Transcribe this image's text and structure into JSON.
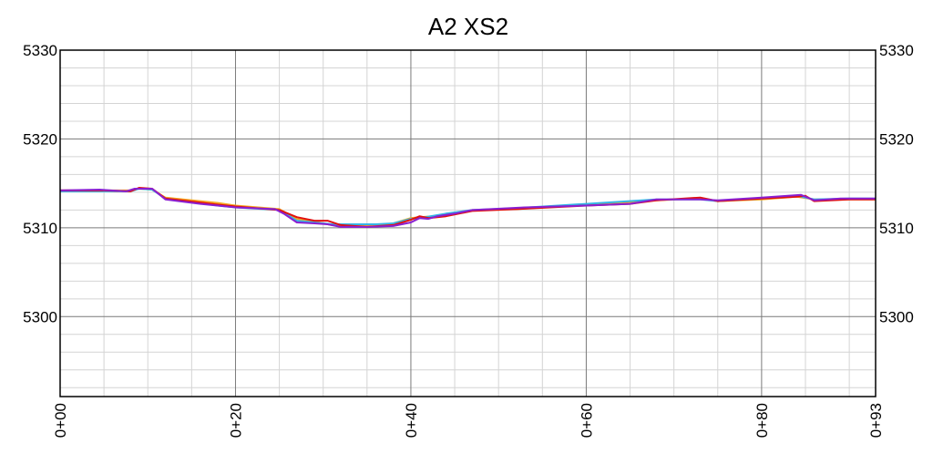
{
  "chart_data": {
    "type": "line",
    "title": "A2 XS2",
    "xlabel": "",
    "ylabel": "",
    "xlim": [
      0,
      93
    ],
    "ylim": [
      5291,
      5330
    ],
    "x_ticks": [
      0,
      20,
      40,
      60,
      80,
      93
    ],
    "x_tick_labels": [
      "0+00",
      "0+20",
      "0+40",
      "0+60",
      "0+80",
      "0+93"
    ],
    "y_ticks": [
      5300,
      5310,
      5320,
      5330
    ],
    "y_tick_labels": [
      "5300",
      "5310",
      "5320",
      "5330"
    ],
    "y_axis_right": true,
    "grid": true,
    "legend": "none",
    "series": [
      {
        "color": "#f5a623",
        "x": [
          0,
          5,
          8,
          9,
          10.5,
          12,
          18,
          20,
          25,
          27,
          29,
          31,
          33,
          36,
          38,
          40,
          41,
          44,
          47,
          52,
          60,
          68,
          73,
          75,
          80,
          84,
          86,
          90,
          93
        ],
        "y": [
          5314.2,
          5314.2,
          5314.2,
          5314.4,
          5314.3,
          5313.4,
          5312.8,
          5312.5,
          5312.1,
          5311.0,
          5310.7,
          5310.3,
          5310.3,
          5310.2,
          5310.5,
          5311.1,
          5311.2,
          5311.4,
          5312.0,
          5312.1,
          5312.6,
          5313.1,
          5313.3,
          5313.0,
          5313.2,
          5313.5,
          5313.2,
          5313.2,
          5313.2
        ]
      },
      {
        "color": "#33b5e5",
        "x": [
          0,
          5,
          8,
          9,
          10.5,
          12,
          18,
          20,
          25,
          27,
          29,
          31,
          33,
          36,
          38,
          40,
          41,
          44,
          47,
          52,
          60,
          68,
          73,
          75,
          80,
          84,
          86,
          90,
          93
        ],
        "y": [
          5314.1,
          5314.1,
          5314.1,
          5314.4,
          5314.3,
          5313.3,
          5312.5,
          5312.3,
          5312.0,
          5310.8,
          5310.6,
          5310.4,
          5310.4,
          5310.4,
          5310.5,
          5311.0,
          5311.1,
          5311.6,
          5312.0,
          5312.2,
          5312.7,
          5313.2,
          5313.2,
          5313.0,
          5313.3,
          5313.6,
          5313.2,
          5313.3,
          5313.3
        ]
      },
      {
        "color": "#e01010",
        "x": [
          0,
          5,
          8,
          9,
          10.5,
          12,
          18,
          20,
          25,
          27,
          29,
          30.5,
          32,
          35,
          38,
          40,
          41,
          42,
          44,
          47,
          52,
          60,
          65,
          68,
          73,
          75,
          80,
          84,
          85,
          86,
          90,
          93
        ],
        "y": [
          5314.2,
          5314.2,
          5314.1,
          5314.5,
          5314.4,
          5313.3,
          5312.6,
          5312.4,
          5312.0,
          5311.2,
          5310.8,
          5310.8,
          5310.3,
          5310.1,
          5310.3,
          5310.9,
          5311.3,
          5311.1,
          5311.3,
          5311.9,
          5312.1,
          5312.5,
          5312.7,
          5313.1,
          5313.4,
          5313.0,
          5313.3,
          5313.5,
          5313.6,
          5313.0,
          5313.2,
          5313.2
        ]
      },
      {
        "color": "#8a1fd0",
        "x": [
          0,
          4.5,
          7.5,
          8.5,
          10.5,
          12,
          16,
          20,
          24.5,
          25.5,
          27,
          29,
          30.5,
          32,
          35,
          38,
          40,
          41,
          42,
          43,
          45,
          47,
          53,
          60,
          65,
          68,
          73,
          75,
          80,
          84.5,
          86,
          89,
          93
        ],
        "y": [
          5314.2,
          5314.3,
          5314.1,
          5314.4,
          5314.4,
          5313.2,
          5312.7,
          5312.3,
          5312.1,
          5311.6,
          5310.6,
          5310.5,
          5310.4,
          5310.1,
          5310.1,
          5310.2,
          5310.6,
          5311.1,
          5311.0,
          5311.3,
          5311.6,
          5312.0,
          5312.3,
          5312.5,
          5312.7,
          5313.2,
          5313.2,
          5313.1,
          5313.4,
          5313.7,
          5313.1,
          5313.3,
          5313.3
        ]
      }
    ]
  }
}
